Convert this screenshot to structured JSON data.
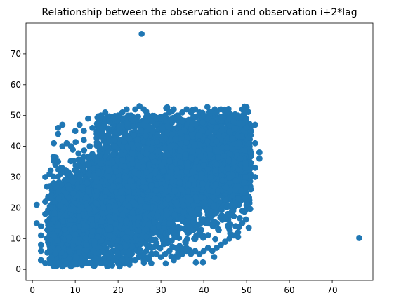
{
  "chart_data": {
    "type": "scatter",
    "title": "Relationship between the observation i and observation i+2*lag",
    "xlabel": "",
    "ylabel": "",
    "xlim": [
      -1.5,
      79.5
    ],
    "ylim": [
      -3.6,
      80
    ],
    "x_ticks": [
      0,
      10,
      20,
      30,
      40,
      50,
      60,
      70
    ],
    "y_ticks": [
      0,
      10,
      20,
      30,
      40,
      50,
      60,
      70
    ],
    "grid": false,
    "color": "#1f77b4",
    "notes": "Dense scatter cloud of a few thousand observations concentrated roughly between x 1-53 and y 1-53, with upward trend; two outliers.",
    "cloud_bounds": {
      "x_min": 1,
      "x_max": 54,
      "y_min": 1,
      "y_max": 53
    },
    "cloud_points": [
      [
        1,
        21
      ],
      [
        2,
        14
      ],
      [
        2,
        11
      ],
      [
        3,
        22
      ],
      [
        3,
        30
      ],
      [
        3,
        18
      ],
      [
        4,
        31
      ],
      [
        4,
        27
      ],
      [
        5,
        28
      ],
      [
        5,
        41
      ],
      [
        6,
        35
      ],
      [
        6,
        46
      ],
      [
        6,
        44
      ],
      [
        7,
        40
      ],
      [
        7,
        47
      ],
      [
        8,
        41
      ],
      [
        9,
        40
      ],
      [
        10,
        45
      ],
      [
        11,
        47
      ],
      [
        12,
        45
      ],
      [
        12,
        42
      ],
      [
        13,
        49
      ],
      [
        14,
        46
      ],
      [
        15,
        44
      ],
      [
        16,
        50
      ],
      [
        17,
        51
      ],
      [
        18,
        48
      ],
      [
        19,
        49
      ],
      [
        20,
        50
      ],
      [
        21,
        51
      ],
      [
        22,
        52
      ],
      [
        23,
        50
      ],
      [
        24,
        52
      ],
      [
        25,
        53
      ],
      [
        26,
        52
      ],
      [
        27,
        50
      ],
      [
        28,
        48
      ],
      [
        29,
        49
      ],
      [
        30,
        49
      ],
      [
        31,
        50
      ],
      [
        32,
        51
      ],
      [
        33,
        52
      ],
      [
        34,
        50
      ],
      [
        35,
        51
      ],
      [
        36,
        52
      ],
      [
        37,
        51
      ],
      [
        38,
        52
      ],
      [
        39,
        51
      ],
      [
        40,
        50
      ],
      [
        41,
        49
      ],
      [
        42,
        48
      ],
      [
        43,
        51
      ],
      [
        44,
        52
      ],
      [
        45,
        51
      ],
      [
        46,
        49
      ],
      [
        47,
        48
      ],
      [
        48,
        50
      ],
      [
        49,
        52
      ],
      [
        50,
        46
      ],
      [
        51,
        45
      ],
      [
        52,
        47
      ],
      [
        52,
        41
      ],
      [
        53,
        38
      ],
      [
        53,
        36
      ],
      [
        52,
        33
      ],
      [
        52,
        30
      ],
      [
        51,
        26
      ],
      [
        50,
        22
      ],
      [
        49,
        19
      ],
      [
        49,
        15
      ],
      [
        48,
        12
      ],
      [
        47,
        11
      ],
      [
        46,
        10
      ],
      [
        45,
        9
      ],
      [
        44,
        8
      ],
      [
        43,
        7
      ],
      [
        42,
        6
      ],
      [
        41,
        7
      ],
      [
        40,
        6
      ],
      [
        39,
        5
      ],
      [
        38,
        6
      ],
      [
        37,
        5
      ],
      [
        36,
        6
      ],
      [
        35,
        5
      ],
      [
        34,
        4
      ],
      [
        33,
        3
      ],
      [
        32,
        6
      ],
      [
        31,
        5
      ],
      [
        30,
        4
      ],
      [
        29,
        5
      ],
      [
        28,
        5
      ],
      [
        27,
        4
      ],
      [
        26,
        3
      ],
      [
        25,
        4
      ],
      [
        24,
        3
      ],
      [
        23,
        3
      ],
      [
        22,
        3
      ],
      [
        21,
        3
      ],
      [
        20,
        2
      ],
      [
        19,
        3
      ],
      [
        18,
        2
      ],
      [
        17,
        2
      ],
      [
        16,
        2
      ],
      [
        15,
        2
      ],
      [
        14,
        2
      ],
      [
        13,
        2
      ],
      [
        12,
        2
      ],
      [
        11,
        2
      ],
      [
        10,
        2
      ],
      [
        9,
        1
      ],
      [
        8,
        2
      ],
      [
        7,
        1
      ],
      [
        6,
        2
      ],
      [
        5,
        2
      ],
      [
        4,
        2
      ],
      [
        3,
        2
      ],
      [
        2,
        3
      ],
      [
        2,
        6
      ],
      [
        2,
        8
      ],
      [
        1,
        15
      ]
    ],
    "outliers": [
      {
        "x": 25.5,
        "y": 76.5
      },
      {
        "x": 76.3,
        "y": 10.2
      }
    ]
  }
}
